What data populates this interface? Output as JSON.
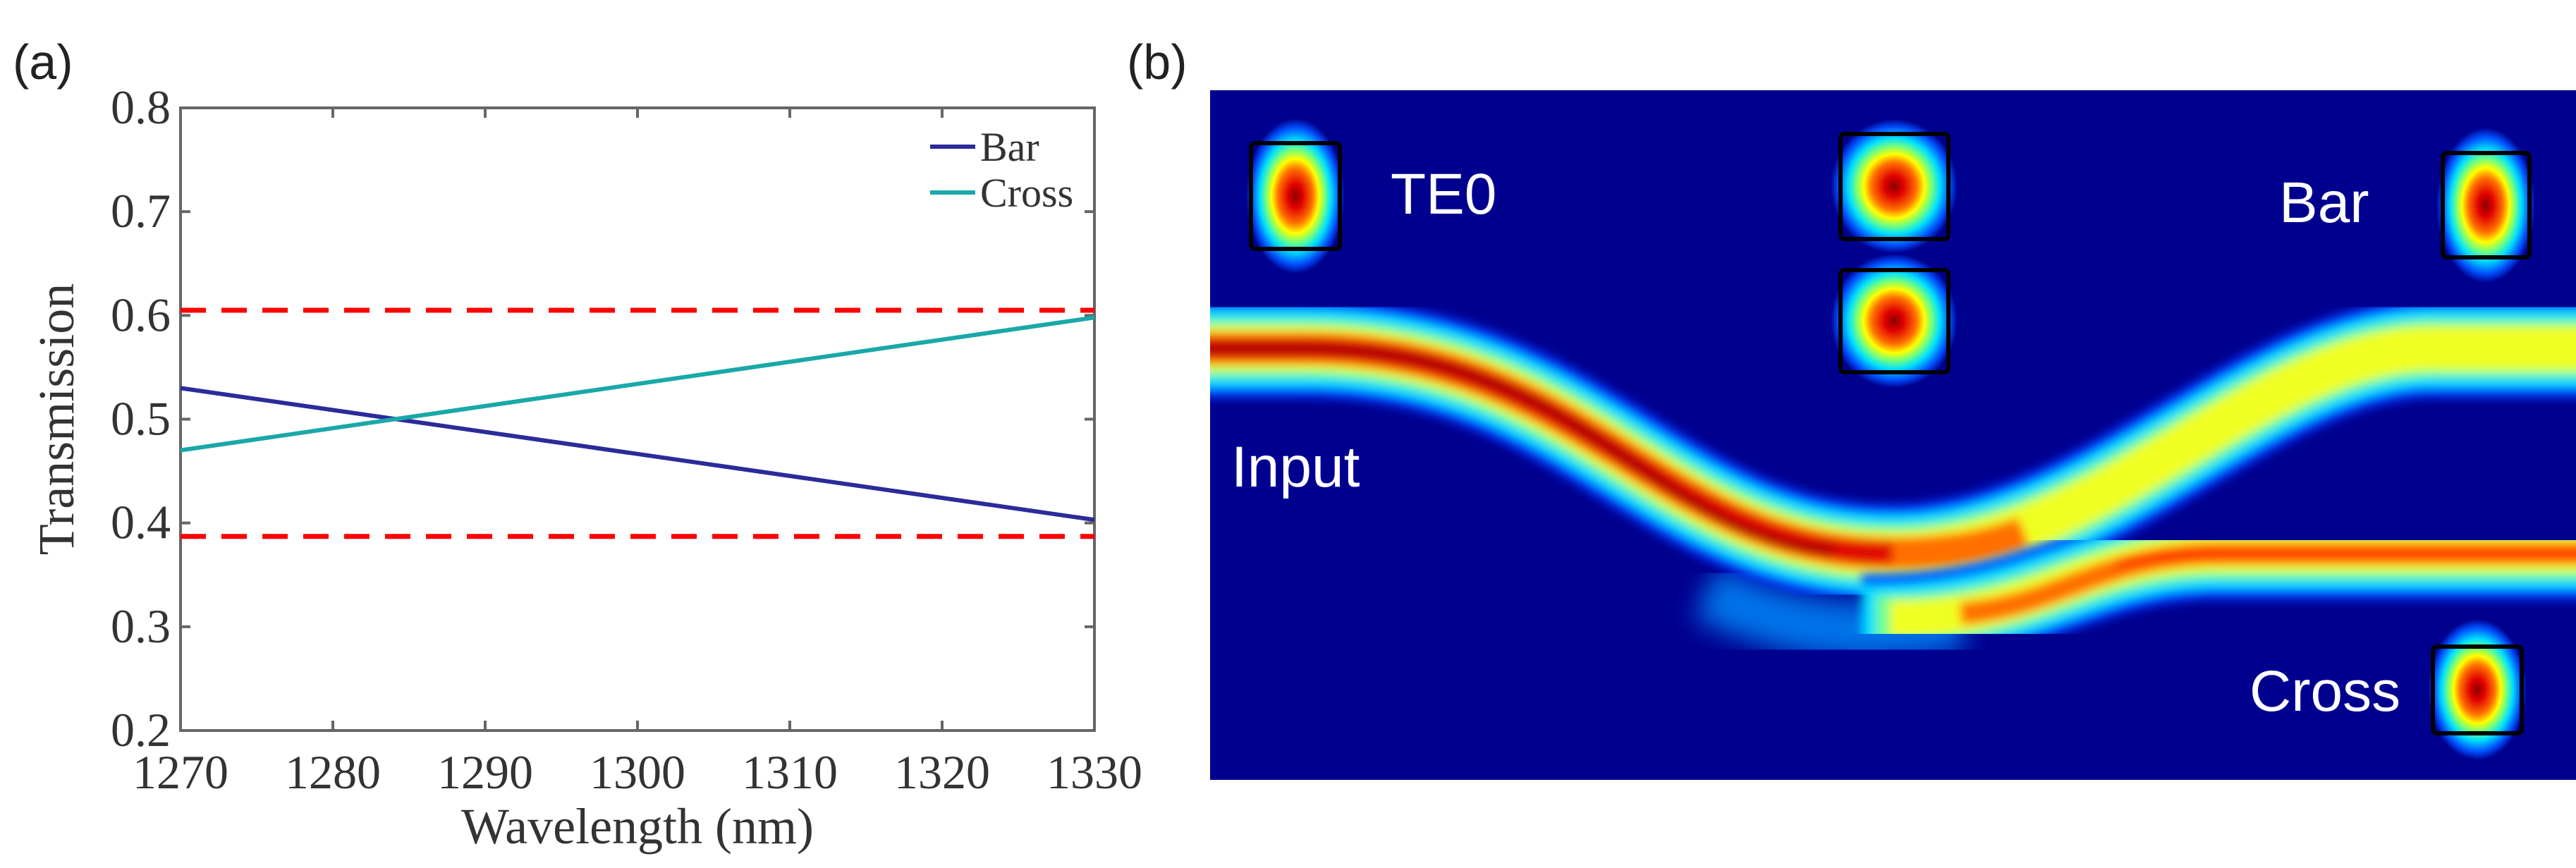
{
  "panel_a_label": "(a)",
  "panel_b_label": "(b)",
  "chart_data": {
    "type": "line",
    "title": "",
    "xlabel": "Wavelength (nm)",
    "ylabel": "Transmission",
    "xlim": [
      1270,
      1330
    ],
    "ylim": [
      0.2,
      0.8
    ],
    "xticks": [
      "1270",
      "1280",
      "1290",
      "1300",
      "1310",
      "1320",
      "1330"
    ],
    "yticks": [
      "0.2",
      "0.3",
      "0.4",
      "0.5",
      "0.6",
      "0.7",
      "0.8"
    ],
    "grid": false,
    "legend_position": "top-right",
    "series": [
      {
        "name": "Bar",
        "color": "#2b2b9b",
        "x": [
          1270,
          1330
        ],
        "y": [
          0.53,
          0.403
        ]
      },
      {
        "name": "Cross",
        "color": "#1aa8a8",
        "x": [
          1270,
          1330
        ],
        "y": [
          0.47,
          0.598
        ]
      }
    ],
    "reference_lines": [
      {
        "y": 0.605,
        "color": "#ff0000",
        "style": "dashed"
      },
      {
        "y": 0.387,
        "color": "#ff0000",
        "style": "dashed"
      }
    ]
  },
  "field_map": {
    "background": "#00008f",
    "labels": {
      "te0": "TE0",
      "input": "Input",
      "bar": "Bar",
      "cross": "Cross"
    }
  }
}
